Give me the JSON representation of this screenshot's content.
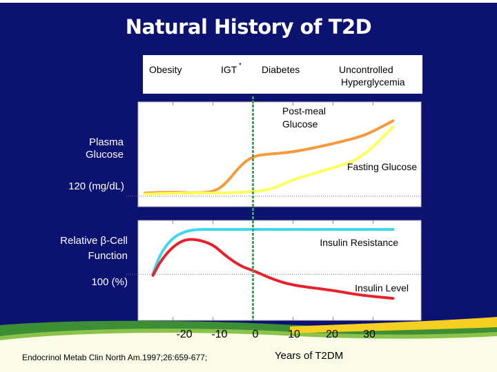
{
  "title": "Natural History of T2D",
  "stages": [
    "Obesity",
    "IGT",
    "*",
    "Diabetes",
    "Uncontrolled",
    "Hyperglycemia"
  ],
  "y_labels": {
    "glucose_1": "Plasma",
    "glucose_2": "Glucose",
    "glucose_ref": "120 (mg/dL)",
    "beta_1": "Relative β-Cell",
    "beta_2": "Function",
    "beta_ref": "100 (%)"
  },
  "x_axis": {
    "ticks": [
      "-20",
      "-10",
      "0",
      "10",
      "20",
      "30"
    ],
    "title": "Years of T2DM"
  },
  "reference": "Endocrinol Metab Clin North Am.1997;26:659-677;",
  "colors": {
    "background": "#0c1270",
    "panel": "#ffffff",
    "post_meal": "#f7993a",
    "fasting": "#ffff5a",
    "insulin_resistance": "#3fd7f0",
    "insulin_level": "#e8202a",
    "igt_marker": "#2ab04a"
  },
  "chart_data": [
    {
      "type": "line",
      "title": "Natural History of T2D",
      "ylabel": "Plasma Glucose",
      "xlabel": "Years of T2DM",
      "xlim": [
        -27,
        42
      ],
      "ylim": [
        0,
        100
      ],
      "reference_line": {
        "label": "120 (mg/dL)",
        "y": 10
      },
      "series": [
        {
          "name": "Post-meal",
          "label_1": "Post-meal",
          "label_2": "Glucose",
          "color_key": "post_meal",
          "x": [
            -27,
            -20,
            -15,
            -10,
            -7,
            -3,
            0,
            3,
            10,
            20,
            27,
            30,
            35
          ],
          "y": [
            13,
            14,
            13,
            14,
            21,
            40,
            48,
            50,
            52,
            60,
            67,
            72,
            82
          ]
        },
        {
          "name": "Fasting Glucose",
          "label": "Fasting Glucose",
          "color_key": "fasting",
          "x": [
            -27,
            -20,
            -10,
            0,
            5,
            10,
            20,
            27,
            35
          ],
          "y": [
            12,
            13,
            13,
            14,
            17,
            26,
            37,
            46,
            76
          ]
        }
      ]
    },
    {
      "type": "line",
      "ylabel": "Relative β-Cell Function",
      "xlabel": "Years of T2DM",
      "xlim": [
        -27,
        42
      ],
      "ylim": [
        0,
        100
      ],
      "reference_line": {
        "label": "100 (%)",
        "y": 46
      },
      "series": [
        {
          "name": "Insulin Resistance",
          "label": "Insulin Resistance",
          "color_key": "insulin_resistance",
          "x": [
            -25,
            -23,
            -20,
            -17,
            -14,
            -10,
            0,
            35
          ],
          "y": [
            47,
            68,
            83,
            89,
            91,
            91,
            91,
            91
          ]
        },
        {
          "name": "Insulin Level",
          "label": "Insulin Level",
          "color_key": "insulin_level",
          "x": [
            -25,
            -23,
            -20,
            -17,
            -14,
            -10,
            -7,
            -3,
            0,
            5,
            10,
            20,
            27,
            35
          ],
          "y": [
            45,
            60,
            74,
            81,
            81,
            76,
            65,
            54,
            50,
            41,
            35,
            30,
            25,
            22
          ]
        }
      ]
    }
  ]
}
